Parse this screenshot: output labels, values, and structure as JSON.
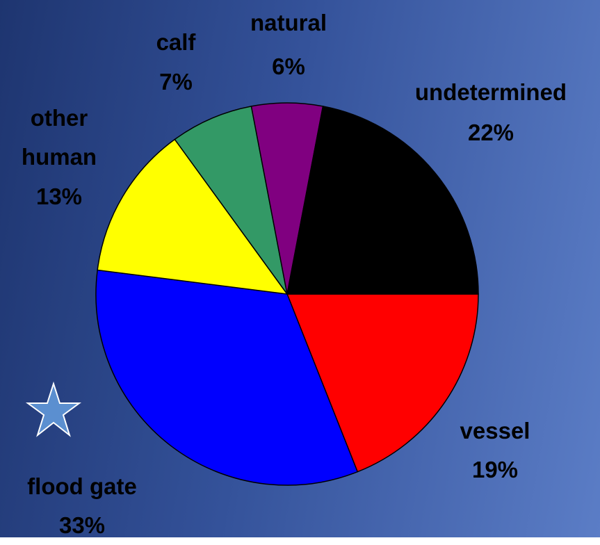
{
  "chart_data": {
    "type": "pie",
    "categories": [
      "vessel",
      "flood gate",
      "other human",
      "calf",
      "natural",
      "undetermined"
    ],
    "values": [
      19,
      33,
      13,
      7,
      6,
      22
    ],
    "value_labels": [
      "19%",
      "33%",
      "13%",
      "7%",
      "6%",
      "22%"
    ],
    "colors": [
      "#ff0000",
      "#0000ff",
      "#ffff00",
      "#339966",
      "#800080",
      "#000000"
    ]
  }
}
